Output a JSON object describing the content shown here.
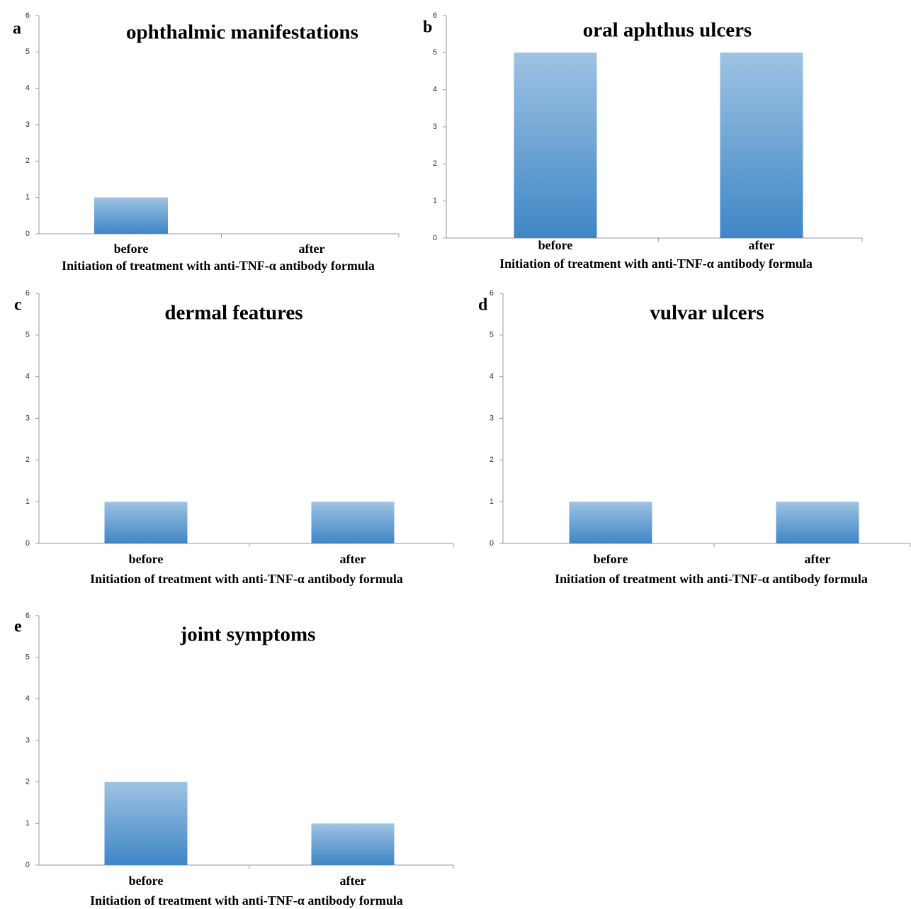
{
  "chart_data": [
    {
      "type": "bar",
      "panel": "a",
      "title": "ophthalmic manifestations",
      "categories": [
        "before",
        "after"
      ],
      "values": [
        1,
        0
      ],
      "xlabel": "Initiation of treatment with anti-TNF-α antibody formula",
      "ylim": [
        0,
        6
      ],
      "yticks": [
        0,
        1,
        2,
        3,
        4,
        5,
        6
      ],
      "color": "#3f86c6"
    },
    {
      "type": "bar",
      "panel": "b",
      "title": "oral aphthus ulcers",
      "categories": [
        "before",
        "after"
      ],
      "values": [
        5,
        5
      ],
      "xlabel": "Initiation of treatment with anti-TNF-α antibody formula",
      "ylim": [
        0,
        6
      ],
      "yticks": [
        0,
        1,
        2,
        3,
        4,
        5,
        6
      ],
      "color": "#3f86c6"
    },
    {
      "type": "bar",
      "panel": "c",
      "title": "dermal features",
      "categories": [
        "before",
        "after"
      ],
      "values": [
        1,
        1
      ],
      "xlabel": "Initiation of treatment with anti-TNF-α antibody formula",
      "ylim": [
        0,
        6
      ],
      "yticks": [
        0,
        1,
        2,
        3,
        4,
        5,
        6
      ],
      "color": "#3f86c6"
    },
    {
      "type": "bar",
      "panel": "d",
      "title": "vulvar ulcers",
      "categories": [
        "before",
        "after"
      ],
      "values": [
        1,
        1
      ],
      "xlabel": "Initiation of treatment with anti-TNF-α antibody formula",
      "ylim": [
        0,
        6
      ],
      "yticks": [
        0,
        1,
        2,
        3,
        4,
        5,
        6
      ],
      "color": "#3f86c6"
    },
    {
      "type": "bar",
      "panel": "e",
      "title": "joint symptoms",
      "categories": [
        "before",
        "after"
      ],
      "values": [
        2,
        1
      ],
      "xlabel": "Initiation of treatment with anti-TNF-α antibody formula",
      "ylim": [
        0,
        6
      ],
      "yticks": [
        0,
        1,
        2,
        3,
        4,
        5,
        6
      ],
      "color": "#3f86c6"
    }
  ]
}
